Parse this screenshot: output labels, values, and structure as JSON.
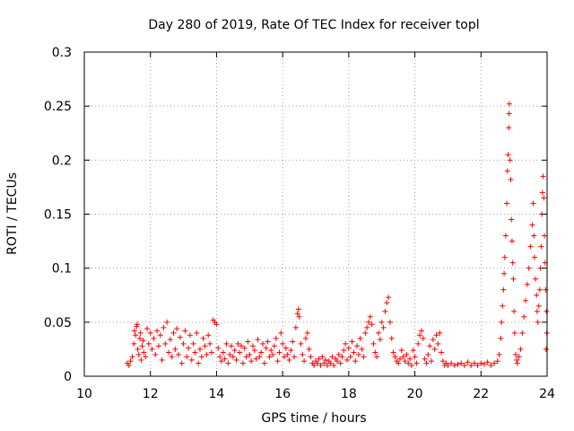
{
  "chart_data": {
    "type": "scatter",
    "title": "Day 280 of 2019, Rate Of TEC Index for receiver topl",
    "xlabel": "GPS time / hours",
    "ylabel": "ROTI / TECUs",
    "xlim": [
      10,
      24
    ],
    "ylim": [
      0,
      0.3
    ],
    "x_ticks": [
      "10",
      "12",
      "14",
      "16",
      "18",
      "20",
      "22",
      "24"
    ],
    "y_ticks": [
      "0",
      "0.05",
      "0.1",
      "0.15",
      "0.2",
      "0.25",
      "0.3"
    ],
    "grid": true,
    "marker": "+",
    "colors": {
      "series": "#ff0000",
      "grid": "#a0a0a0",
      "axis": "#000000"
    },
    "series": [
      {
        "name": "ROTI",
        "points": [
          [
            11.3,
            0.012
          ],
          [
            11.35,
            0.01
          ],
          [
            11.4,
            0.014
          ],
          [
            11.45,
            0.018
          ],
          [
            11.5,
            0.03
          ],
          [
            11.52,
            0.042
          ],
          [
            11.55,
            0.038
          ],
          [
            11.58,
            0.046
          ],
          [
            11.6,
            0.048
          ],
          [
            11.62,
            0.025
          ],
          [
            11.65,
            0.02
          ],
          [
            11.68,
            0.035
          ],
          [
            11.7,
            0.04
          ],
          [
            11.72,
            0.015
          ],
          [
            11.75,
            0.028
          ],
          [
            11.78,
            0.033
          ],
          [
            11.8,
            0.022
          ],
          [
            11.85,
            0.018
          ],
          [
            11.9,
            0.044
          ],
          [
            11.95,
            0.03
          ],
          [
            12.0,
            0.04
          ],
          [
            12.05,
            0.025
          ],
          [
            12.1,
            0.035
          ],
          [
            12.15,
            0.02
          ],
          [
            12.2,
            0.042
          ],
          [
            12.25,
            0.028
          ],
          [
            12.3,
            0.038
          ],
          [
            12.35,
            0.015
          ],
          [
            12.4,
            0.045
          ],
          [
            12.45,
            0.03
          ],
          [
            12.5,
            0.05
          ],
          [
            12.55,
            0.022
          ],
          [
            12.6,
            0.034
          ],
          [
            12.65,
            0.018
          ],
          [
            12.7,
            0.04
          ],
          [
            12.75,
            0.025
          ],
          [
            12.8,
            0.044
          ],
          [
            12.85,
            0.02
          ],
          [
            12.9,
            0.036
          ],
          [
            12.95,
            0.012
          ],
          [
            13.0,
            0.03
          ],
          [
            13.05,
            0.042
          ],
          [
            13.1,
            0.018
          ],
          [
            13.15,
            0.026
          ],
          [
            13.2,
            0.038
          ],
          [
            13.25,
            0.015
          ],
          [
            13.3,
            0.03
          ],
          [
            13.35,
            0.022
          ],
          [
            13.4,
            0.04
          ],
          [
            13.45,
            0.012
          ],
          [
            13.5,
            0.025
          ],
          [
            13.55,
            0.018
          ],
          [
            13.6,
            0.035
          ],
          [
            13.65,
            0.028
          ],
          [
            13.7,
            0.02
          ],
          [
            13.75,
            0.038
          ],
          [
            13.8,
            0.03
          ],
          [
            13.85,
            0.022
          ],
          [
            13.9,
            0.052
          ],
          [
            13.95,
            0.05
          ],
          [
            14.0,
            0.048
          ],
          [
            14.05,
            0.026
          ],
          [
            14.1,
            0.018
          ],
          [
            14.15,
            0.014
          ],
          [
            14.2,
            0.022
          ],
          [
            14.25,
            0.016
          ],
          [
            14.3,
            0.03
          ],
          [
            14.35,
            0.012
          ],
          [
            14.4,
            0.02
          ],
          [
            14.45,
            0.028
          ],
          [
            14.5,
            0.018
          ],
          [
            14.55,
            0.024
          ],
          [
            14.6,
            0.015
          ],
          [
            14.65,
            0.03
          ],
          [
            14.7,
            0.022
          ],
          [
            14.75,
            0.028
          ],
          [
            14.8,
            0.012
          ],
          [
            14.85,
            0.026
          ],
          [
            14.9,
            0.018
          ],
          [
            14.95,
            0.032
          ],
          [
            15.0,
            0.02
          ],
          [
            15.05,
            0.014
          ],
          [
            15.1,
            0.028
          ],
          [
            15.15,
            0.024
          ],
          [
            15.2,
            0.016
          ],
          [
            15.25,
            0.034
          ],
          [
            15.3,
            0.018
          ],
          [
            15.35,
            0.022
          ],
          [
            15.4,
            0.03
          ],
          [
            15.45,
            0.012
          ],
          [
            15.5,
            0.026
          ],
          [
            15.55,
            0.032
          ],
          [
            15.6,
            0.018
          ],
          [
            15.65,
            0.024
          ],
          [
            15.7,
            0.02
          ],
          [
            15.75,
            0.028
          ],
          [
            15.8,
            0.035
          ],
          [
            15.85,
            0.014
          ],
          [
            15.9,
            0.022
          ],
          [
            15.95,
            0.04
          ],
          [
            16.0,
            0.03
          ],
          [
            16.05,
            0.018
          ],
          [
            16.1,
            0.026
          ],
          [
            16.15,
            0.02
          ],
          [
            16.2,
            0.015
          ],
          [
            16.25,
            0.024
          ],
          [
            16.3,
            0.032
          ],
          [
            16.35,
            0.018
          ],
          [
            16.4,
            0.045
          ],
          [
            16.45,
            0.058
          ],
          [
            16.48,
            0.062
          ],
          [
            16.5,
            0.055
          ],
          [
            16.55,
            0.03
          ],
          [
            16.6,
            0.02
          ],
          [
            16.65,
            0.014
          ],
          [
            16.7,
            0.035
          ],
          [
            16.75,
            0.04
          ],
          [
            16.8,
            0.025
          ],
          [
            16.85,
            0.018
          ],
          [
            16.9,
            0.012
          ],
          [
            16.95,
            0.01
          ],
          [
            17.0,
            0.014
          ],
          [
            17.05,
            0.012
          ],
          [
            17.1,
            0.016
          ],
          [
            17.15,
            0.01
          ],
          [
            17.2,
            0.018
          ],
          [
            17.25,
            0.012
          ],
          [
            17.3,
            0.015
          ],
          [
            17.35,
            0.01
          ],
          [
            17.4,
            0.014
          ],
          [
            17.45,
            0.012
          ],
          [
            17.5,
            0.018
          ],
          [
            17.55,
            0.01
          ],
          [
            17.6,
            0.016
          ],
          [
            17.65,
            0.014
          ],
          [
            17.7,
            0.02
          ],
          [
            17.75,
            0.012
          ],
          [
            17.8,
            0.018
          ],
          [
            17.85,
            0.024
          ],
          [
            17.9,
            0.03
          ],
          [
            17.95,
            0.015
          ],
          [
            18.0,
            0.026
          ],
          [
            18.05,
            0.018
          ],
          [
            18.1,
            0.032
          ],
          [
            18.15,
            0.022
          ],
          [
            18.2,
            0.014
          ],
          [
            18.25,
            0.028
          ],
          [
            18.3,
            0.02
          ],
          [
            18.35,
            0.035
          ],
          [
            18.4,
            0.025
          ],
          [
            18.45,
            0.018
          ],
          [
            18.5,
            0.04
          ],
          [
            18.55,
            0.045
          ],
          [
            18.6,
            0.05
          ],
          [
            18.65,
            0.055
          ],
          [
            18.7,
            0.048
          ],
          [
            18.75,
            0.03
          ],
          [
            18.8,
            0.022
          ],
          [
            18.85,
            0.018
          ],
          [
            18.9,
            0.04
          ],
          [
            18.95,
            0.034
          ],
          [
            19.0,
            0.05
          ],
          [
            19.05,
            0.045
          ],
          [
            19.1,
            0.06
          ],
          [
            19.15,
            0.068
          ],
          [
            19.2,
            0.073
          ],
          [
            19.25,
            0.05
          ],
          [
            19.3,
            0.035
          ],
          [
            19.35,
            0.022
          ],
          [
            19.4,
            0.018
          ],
          [
            19.45,
            0.014
          ],
          [
            19.5,
            0.012
          ],
          [
            19.55,
            0.016
          ],
          [
            19.6,
            0.024
          ],
          [
            19.65,
            0.018
          ],
          [
            19.7,
            0.014
          ],
          [
            19.75,
            0.02
          ],
          [
            19.8,
            0.012
          ],
          [
            19.85,
            0.016
          ],
          [
            19.9,
            0.01
          ],
          [
            19.95,
            0.024
          ],
          [
            20.0,
            0.018
          ],
          [
            20.05,
            0.012
          ],
          [
            20.1,
            0.03
          ],
          [
            20.15,
            0.038
          ],
          [
            20.2,
            0.042
          ],
          [
            20.25,
            0.035
          ],
          [
            20.3,
            0.016
          ],
          [
            20.35,
            0.012
          ],
          [
            20.4,
            0.02
          ],
          [
            20.45,
            0.028
          ],
          [
            20.5,
            0.014
          ],
          [
            20.55,
            0.034
          ],
          [
            20.6,
            0.025
          ],
          [
            20.65,
            0.038
          ],
          [
            20.7,
            0.03
          ],
          [
            20.75,
            0.04
          ],
          [
            20.8,
            0.022
          ],
          [
            20.85,
            0.014
          ],
          [
            20.9,
            0.01
          ],
          [
            20.95,
            0.012
          ],
          [
            21.0,
            0.01
          ],
          [
            21.1,
            0.012
          ],
          [
            21.2,
            0.01
          ],
          [
            21.3,
            0.011
          ],
          [
            21.4,
            0.012
          ],
          [
            21.5,
            0.01
          ],
          [
            21.6,
            0.013
          ],
          [
            21.7,
            0.01
          ],
          [
            21.8,
            0.012
          ],
          [
            21.9,
            0.01
          ],
          [
            22.0,
            0.012
          ],
          [
            22.1,
            0.011
          ],
          [
            22.2,
            0.013
          ],
          [
            22.3,
            0.01
          ],
          [
            22.4,
            0.012
          ],
          [
            22.5,
            0.014
          ],
          [
            22.55,
            0.02
          ],
          [
            22.6,
            0.035
          ],
          [
            22.62,
            0.05
          ],
          [
            22.65,
            0.065
          ],
          [
            22.68,
            0.08
          ],
          [
            22.7,
            0.095
          ],
          [
            22.72,
            0.11
          ],
          [
            22.75,
            0.13
          ],
          [
            22.78,
            0.16
          ],
          [
            22.8,
            0.19
          ],
          [
            22.82,
            0.205
          ],
          [
            22.84,
            0.23
          ],
          [
            22.85,
            0.243
          ],
          [
            22.86,
            0.252
          ],
          [
            22.88,
            0.2
          ],
          [
            22.9,
            0.182
          ],
          [
            22.92,
            0.145
          ],
          [
            22.94,
            0.125
          ],
          [
            22.96,
            0.105
          ],
          [
            22.98,
            0.09
          ],
          [
            23.0,
            0.06
          ],
          [
            23.02,
            0.04
          ],
          [
            23.05,
            0.02
          ],
          [
            23.08,
            0.015
          ],
          [
            23.1,
            0.012
          ],
          [
            23.15,
            0.018
          ],
          [
            23.2,
            0.025
          ],
          [
            23.25,
            0.04
          ],
          [
            23.3,
            0.055
          ],
          [
            23.35,
            0.07
          ],
          [
            23.4,
            0.085
          ],
          [
            23.45,
            0.1
          ],
          [
            23.5,
            0.12
          ],
          [
            23.55,
            0.14
          ],
          [
            23.58,
            0.16
          ],
          [
            23.6,
            0.13
          ],
          [
            23.62,
            0.11
          ],
          [
            23.65,
            0.09
          ],
          [
            23.68,
            0.075
          ],
          [
            23.7,
            0.06
          ],
          [
            23.72,
            0.05
          ],
          [
            23.75,
            0.065
          ],
          [
            23.78,
            0.08
          ],
          [
            23.8,
            0.1
          ],
          [
            23.82,
            0.12
          ],
          [
            23.84,
            0.15
          ],
          [
            23.86,
            0.17
          ],
          [
            23.88,
            0.185
          ],
          [
            23.9,
            0.165
          ],
          [
            23.92,
            0.13
          ],
          [
            23.94,
            0.105
          ],
          [
            23.96,
            0.08
          ],
          [
            23.98,
            0.06
          ],
          [
            23.99,
            0.04
          ],
          [
            23.97,
            0.025
          ]
        ]
      }
    ]
  }
}
